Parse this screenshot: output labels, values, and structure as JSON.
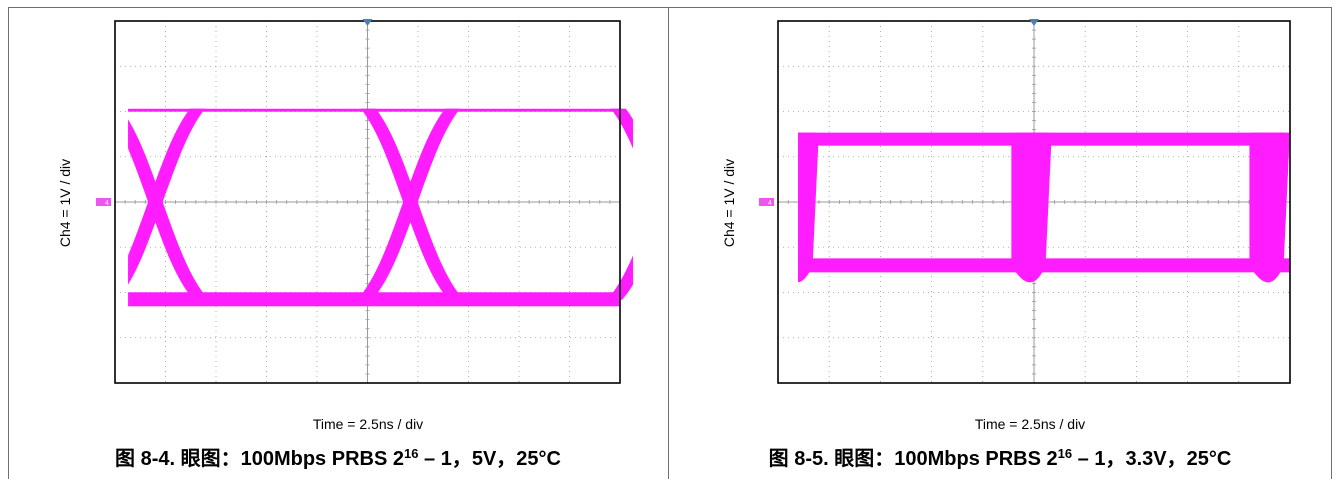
{
  "colors": {
    "trace": "#ff1cff",
    "marker": "#ee55ee",
    "trigger": "#4f7fb2",
    "grid": "#9a9a9a"
  },
  "figures": [
    {
      "caption": {
        "prefix": "图 8-4. 眼图：100Mbps PRBS 2",
        "exponent": "16",
        "suffix": " – 1，5V，25°C"
      },
      "chart_data": {
        "type": "line",
        "title": "图 8-4. 眼图：100Mbps PRBS 2^16 – 1，5V，25°C",
        "xlabel": "Time = 2.5ns / div",
        "ylabel": "Ch4 = 1V / div",
        "x_divisions": 10,
        "y_divisions": 8,
        "x_range_div": [
          0,
          10
        ],
        "y_range_div": [
          -4,
          4
        ],
        "grid": true,
        "channel_marker": "4",
        "series": [
          {
            "high_level_div": 2.15,
            "low_level_div": -2.15,
            "crossings_div": [
              0.8,
              5.85,
              10.8
            ],
            "transition_width_div": 0.9
          }
        ]
      }
    },
    {
      "caption": {
        "prefix": "图 8-5. 眼图：100Mbps PRBS 2",
        "exponent": "16",
        "suffix": " – 1，3.3V，25°C"
      },
      "chart_data": {
        "type": "line",
        "title": "图 8-5. 眼图：100Mbps PRBS 2^16 – 1，3.3V，25°C",
        "xlabel": "Time = 2.5ns / div",
        "ylabel": "Ch4 = 1V / div",
        "x_divisions": 10,
        "y_divisions": 8,
        "x_range_div": [
          0,
          10
        ],
        "y_range_div": [
          -4,
          4
        ],
        "grid": true,
        "channel_marker": "4",
        "series": [
          {
            "high_level_div": 1.4,
            "low_level_div": -1.4,
            "crossings_div": [
              0.4,
              4.95,
              9.6
            ],
            "transition_width_div": 0.55
          }
        ]
      }
    }
  ]
}
